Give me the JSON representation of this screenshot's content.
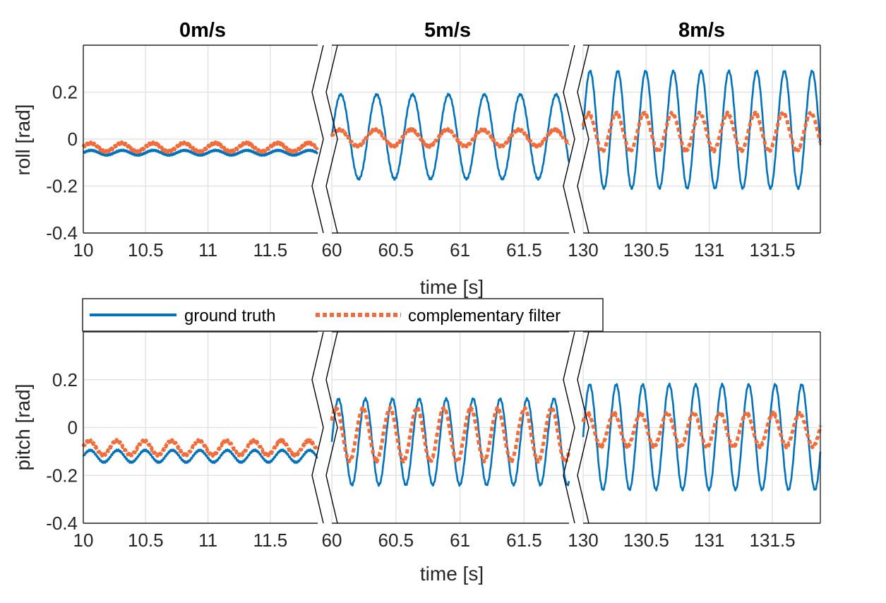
{
  "chart_data": {
    "type": "line",
    "panel_titles": [
      "0m/s",
      "5m/s",
      "8m/s"
    ],
    "xlabel": "time [s]",
    "legend": {
      "placement": "top-left of lower row",
      "entries": [
        "ground truth",
        "complementary filter"
      ]
    },
    "colors": {
      "ground_truth": "#0072BD",
      "complementary_filter": "#F26B38",
      "grid": "#E3E3E3"
    },
    "grid": true,
    "ylim": [
      -0.4,
      0.4
    ],
    "yticks": [
      "0.2",
      "0",
      "-0.2",
      "-0.4"
    ],
    "segments": [
      {
        "xlim": [
          10,
          11.88
        ],
        "xticks": [
          "10",
          "10.5",
          "11",
          "11.5"
        ],
        "tick_values": [
          10,
          10.5,
          11,
          11.5
        ]
      },
      {
        "xlim": [
          60,
          61.85
        ],
        "xticks": [
          "60",
          "60.5",
          "61",
          "61.5"
        ],
        "tick_values": [
          60,
          60.5,
          61,
          61.5
        ]
      },
      {
        "xlim": [
          130,
          131.88
        ],
        "xticks": [
          "130",
          "130.5",
          "131",
          "131.5"
        ],
        "tick_values": [
          130,
          130.5,
          131,
          131.5
        ]
      }
    ],
    "rows": [
      {
        "ylabel": "roll [rad]",
        "panels": [
          {
            "series": [
              {
                "name": "ground truth",
                "offset": -0.058,
                "amplitude": 0.01,
                "period": 0.25,
                "phase": 0.0
              },
              {
                "name": "complementary filter",
                "offset": -0.035,
                "amplitude": 0.018,
                "period": 0.25,
                "phase": 0.02
              }
            ]
          },
          {
            "series": [
              {
                "name": "ground truth",
                "offset": 0.01,
                "amplitude": 0.18,
                "period": 0.28,
                "phase": 0.0
              },
              {
                "name": "complementary filter",
                "offset": 0.005,
                "amplitude": 0.035,
                "period": 0.28,
                "phase": 0.04
              }
            ]
          },
          {
            "series": [
              {
                "name": "ground truth",
                "offset": 0.04,
                "amplitude": 0.25,
                "period": 0.22,
                "phase": 0.0
              },
              {
                "name": "complementary filter",
                "offset": 0.03,
                "amplitude": 0.08,
                "period": 0.22,
                "phase": 0.05
              }
            ]
          }
        ]
      },
      {
        "ylabel": "pitch [rad]",
        "panels": [
          {
            "series": [
              {
                "name": "ground truth",
                "offset": -0.12,
                "amplitude": 0.025,
                "period": 0.22,
                "phase": 0.0
              },
              {
                "name": "complementary filter",
                "offset": -0.085,
                "amplitude": 0.03,
                "period": 0.22,
                "phase": 0.03
              }
            ]
          },
          {
            "series": [
              {
                "name": "ground truth",
                "offset": -0.06,
                "amplitude": 0.18,
                "period": 0.21,
                "phase": 0.0
              },
              {
                "name": "complementary filter",
                "offset": -0.03,
                "amplitude": 0.11,
                "period": 0.21,
                "phase": 0.09
              }
            ]
          },
          {
            "series": [
              {
                "name": "ground truth",
                "offset": -0.04,
                "amplitude": 0.22,
                "period": 0.21,
                "phase": 0.0
              },
              {
                "name": "complementary filter",
                "offset": -0.01,
                "amplitude": 0.07,
                "period": 0.21,
                "phase": 0.08
              }
            ]
          }
        ]
      }
    ]
  }
}
